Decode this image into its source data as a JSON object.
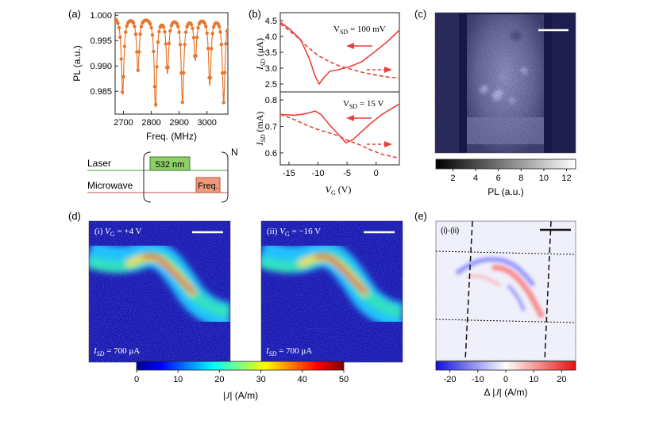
{
  "figure": {
    "panels": {
      "a": {
        "label": "(a)"
      },
      "b": {
        "label": "(b)"
      },
      "c": {
        "label": "(c)"
      },
      "d": {
        "label": "(d)"
      },
      "e": {
        "label": "(e)"
      }
    }
  },
  "chart_data": [
    {
      "panel": "a",
      "type": "line",
      "xlabel": "Freq. (MHz)",
      "ylabel": "PL (a.u.)",
      "xlim": [
        2670,
        3075
      ],
      "ylim": [
        0.9805,
        1.0005
      ],
      "xticks": [
        2700,
        2800,
        2900,
        3000
      ],
      "yticks": [
        "1.000",
        "0.995",
        "0.990",
        "0.985"
      ],
      "dips": [
        {
          "center": 2697,
          "depth": 0.0155
        },
        {
          "center": 2752,
          "depth": 0.0105
        },
        {
          "center": 2815,
          "depth": 0.0178
        },
        {
          "center": 2858,
          "depth": 0.011
        },
        {
          "center": 2912,
          "depth": 0.0168
        },
        {
          "center": 2958,
          "depth": 0.0085
        },
        {
          "center": 3010,
          "depth": 0.0135
        },
        {
          "center": 3060,
          "depth": 0.017
        }
      ],
      "dip_width": 11,
      "color": "#e8762d"
    },
    {
      "panel": "a-sequence",
      "type": "table",
      "rows": [
        "Laser",
        "Microwave"
      ],
      "pulses": [
        "532 nm",
        "Freq."
      ],
      "repeat": "N"
    },
    {
      "panel": "b-top",
      "type": "line",
      "ylabel": "I_SD (μA)",
      "ylim": [
        2.25,
        4.75
      ],
      "xlim": [
        -16.5,
        4
      ],
      "yticks": [
        "4.5",
        "4.0",
        "3.5",
        "3.0",
        "2.5"
      ],
      "annotation": "V_SD = 100 mV",
      "series": [
        {
          "style": "solid",
          "x": [
            -16.5,
            -15,
            -13,
            -11.5,
            -10.5,
            -9.8,
            -9,
            -8,
            -6.5,
            -4.5,
            -2.5,
            0,
            2,
            4
          ],
          "y": [
            4.45,
            4.25,
            3.9,
            3.3,
            2.75,
            2.5,
            2.7,
            2.9,
            2.95,
            3.05,
            3.2,
            3.55,
            3.85,
            4.2
          ]
        },
        {
          "style": "dashed",
          "x": [
            -16.5,
            -14,
            -12,
            -10,
            -8,
            -6,
            -4,
            -2,
            0,
            2,
            4
          ],
          "y": [
            4.4,
            4.05,
            3.7,
            3.4,
            3.2,
            3.05,
            2.95,
            2.85,
            2.78,
            2.72,
            2.68
          ]
        }
      ],
      "color": "#e8403a"
    },
    {
      "panel": "b-bottom",
      "type": "line",
      "ylabel": "I_SD (mA)",
      "xlabel": "V_G (V)",
      "ylim": [
        0.555,
        0.83
      ],
      "xlim": [
        -16.5,
        4
      ],
      "xticks": [
        -15,
        -10,
        -5,
        0
      ],
      "yticks": [
        "0.8",
        "0.7",
        "0.6"
      ],
      "annotation": "V_SD = 15 V",
      "series": [
        {
          "style": "solid",
          "x": [
            -16.5,
            -14,
            -12,
            -10.5,
            -9.5,
            -8,
            -6.5,
            -5.2,
            -4,
            -2.5,
            -1,
            1,
            2.5,
            4
          ],
          "y": [
            0.745,
            0.742,
            0.748,
            0.758,
            0.745,
            0.705,
            0.67,
            0.638,
            0.65,
            0.68,
            0.71,
            0.745,
            0.765,
            0.785
          ]
        },
        {
          "style": "dashed",
          "x": [
            -16.5,
            -14,
            -12,
            -10,
            -8,
            -6.5,
            -5,
            -3,
            -1,
            1,
            3,
            4
          ],
          "y": [
            0.745,
            0.725,
            0.705,
            0.688,
            0.675,
            0.665,
            0.648,
            0.632,
            0.612,
            0.595,
            0.585,
            0.58
          ]
        }
      ],
      "color": "#e8403a"
    },
    {
      "panel": "c-colorbar",
      "type": "heatmap",
      "ticks": [
        "2",
        "4",
        "6",
        "8",
        "10",
        "12"
      ],
      "range": [
        0.5,
        12.8
      ],
      "label": "PL (a.u.)"
    },
    {
      "panel": "d",
      "type": "heatmap",
      "maps": [
        {
          "label": "(i) V_G = +4 V",
          "current": "I_SD = 700 μA"
        },
        {
          "label": "(ii) V_G = −16 V",
          "current": "I_SD = 700 μA"
        }
      ],
      "colorbar": {
        "ticks": [
          "0",
          "10",
          "20",
          "30",
          "40",
          "50"
        ],
        "range": [
          0,
          50
        ],
        "label": "|J| (A/m)"
      }
    },
    {
      "panel": "e",
      "type": "heatmap",
      "label": "(i)-(ii)",
      "colorbar": {
        "ticks": [
          "-20",
          "-10",
          "0",
          "10",
          "20"
        ],
        "range": [
          -25,
          25
        ],
        "label": "Δ |J| (A/m)"
      }
    }
  ]
}
